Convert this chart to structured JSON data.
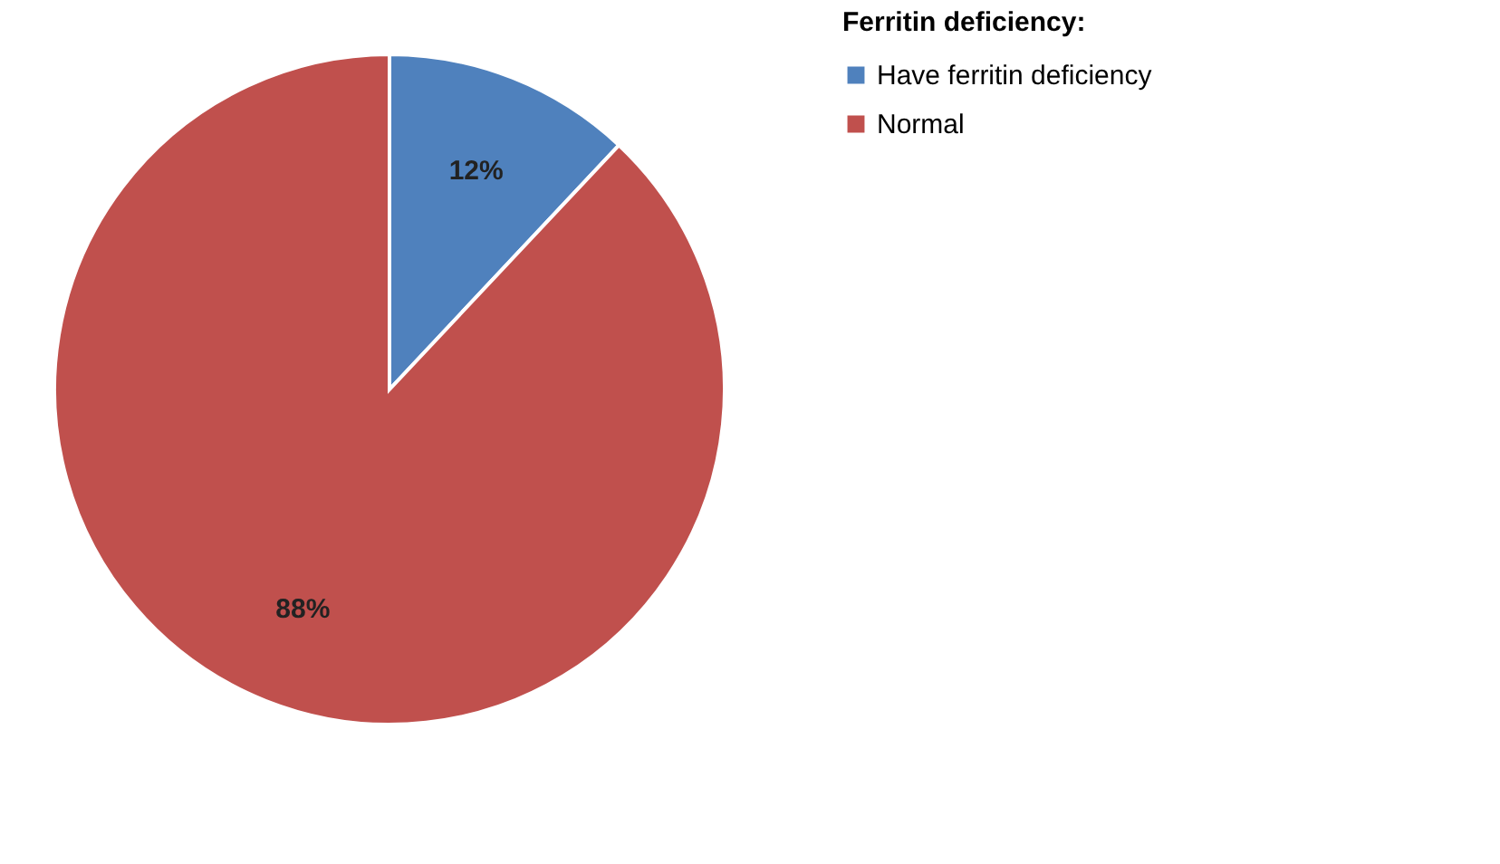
{
  "chart_data": {
    "type": "pie",
    "legend_title": "Ferritin deficiency:",
    "categories": [
      "Have ferritin deficiency",
      "Normal"
    ],
    "values": [
      12,
      88
    ],
    "colors": [
      "#4f81bd",
      "#c0504d"
    ],
    "value_labels": [
      "12%",
      "88%"
    ],
    "legend": "right"
  }
}
